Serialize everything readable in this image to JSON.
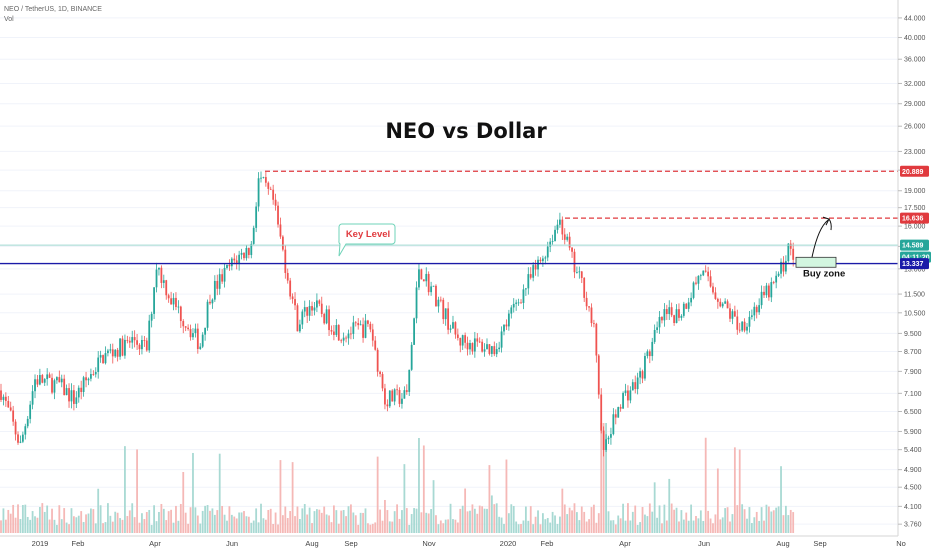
{
  "header": {
    "symbol_line": "NEO / TetherUS, 1D, BINANCE",
    "vol_label": "Vol"
  },
  "chart_data": {
    "type": "candlestick",
    "title": "NEO vs Dollar",
    "y_scale": "log",
    "ylim": [
      3.55,
      48.0
    ],
    "y_ticks": [
      "44.000",
      "40.000",
      "36.000",
      "32.000",
      "29.000",
      "26.000",
      "23.000",
      "21.000",
      "19.000",
      "17.500",
      "16.000",
      "14.500",
      "13.000",
      "11.500",
      "10.500",
      "9.500",
      "8.700",
      "7.900",
      "7.100",
      "6.500",
      "5.900",
      "5.400",
      "4.900",
      "4.500",
      "4.100",
      "3.760"
    ],
    "x_labels": [
      "2019",
      "Feb",
      "Apr",
      "Jun",
      "Aug",
      "Sep",
      "Nov",
      "2020",
      "Feb",
      "Apr",
      "Jun",
      "Aug",
      "Sep",
      "No"
    ],
    "key_points": [
      {
        "t": 0,
        "v": 7.2
      },
      {
        "t": 8,
        "v": 5.5
      },
      {
        "t": 14,
        "v": 7.6
      },
      {
        "t": 24,
        "v": 7.4
      },
      {
        "t": 30,
        "v": 6.9
      },
      {
        "t": 42,
        "v": 8.5
      },
      {
        "t": 55,
        "v": 9.2
      },
      {
        "t": 60,
        "v": 8.8
      },
      {
        "t": 64,
        "v": 13.3
      },
      {
        "t": 70,
        "v": 11.2
      },
      {
        "t": 82,
        "v": 9.0
      },
      {
        "t": 86,
        "v": 11.5
      },
      {
        "t": 96,
        "v": 13.5
      },
      {
        "t": 103,
        "v": 14.5
      },
      {
        "t": 106,
        "v": 20.2
      },
      {
        "t": 112,
        "v": 18.0
      },
      {
        "t": 118,
        "v": 12.5
      },
      {
        "t": 122,
        "v": 10.0
      },
      {
        "t": 128,
        "v": 11.0
      },
      {
        "t": 140,
        "v": 9.5
      },
      {
        "t": 152,
        "v": 9.8
      },
      {
        "t": 158,
        "v": 6.9
      },
      {
        "t": 167,
        "v": 7.0
      },
      {
        "t": 172,
        "v": 13.1
      },
      {
        "t": 178,
        "v": 11.6
      },
      {
        "t": 188,
        "v": 9.2
      },
      {
        "t": 203,
        "v": 8.8
      },
      {
        "t": 212,
        "v": 11.0
      },
      {
        "t": 222,
        "v": 13.5
      },
      {
        "t": 230,
        "v": 16.6
      },
      {
        "t": 236,
        "v": 13.0
      },
      {
        "t": 240,
        "v": 11.8
      },
      {
        "t": 244,
        "v": 9.6
      },
      {
        "t": 248,
        "v": 5.3
      },
      {
        "t": 255,
        "v": 6.9
      },
      {
        "t": 262,
        "v": 7.5
      },
      {
        "t": 272,
        "v": 10.2
      },
      {
        "t": 280,
        "v": 10.6
      },
      {
        "t": 288,
        "v": 12.8
      },
      {
        "t": 298,
        "v": 10.8
      },
      {
        "t": 304,
        "v": 9.8
      },
      {
        "t": 312,
        "v": 11.0
      },
      {
        "t": 318,
        "v": 12.0
      },
      {
        "t": 322,
        "v": 13.3
      },
      {
        "t": 324,
        "v": 14.6
      },
      {
        "t": 326,
        "v": 13.3
      }
    ],
    "candle_count": 327,
    "key_level": {
      "label": "Key Level",
      "value": 13.337,
      "tag": "13.337",
      "color": "#1a1aa8"
    },
    "resistance_1": {
      "value": 20.889,
      "tag": "20.889",
      "color": "#e03a3e"
    },
    "resistance_2": {
      "value": 16.636,
      "tag": "16.636",
      "color": "#e03a3e"
    },
    "current_price": {
      "value": 14.589,
      "tag": "14.589",
      "color": "#26a69a"
    },
    "countdown": {
      "tag": "04:11:20",
      "color": "#26a69a"
    },
    "buy_zone": {
      "label": "Buy zone",
      "low": 13.1,
      "high": 13.75,
      "color": "#d2f5e0"
    },
    "colors": {
      "up": "#26a69a",
      "down": "#ef5350",
      "vol_up": "#a8d9d3",
      "vol_down": "#f5b8b6"
    }
  }
}
